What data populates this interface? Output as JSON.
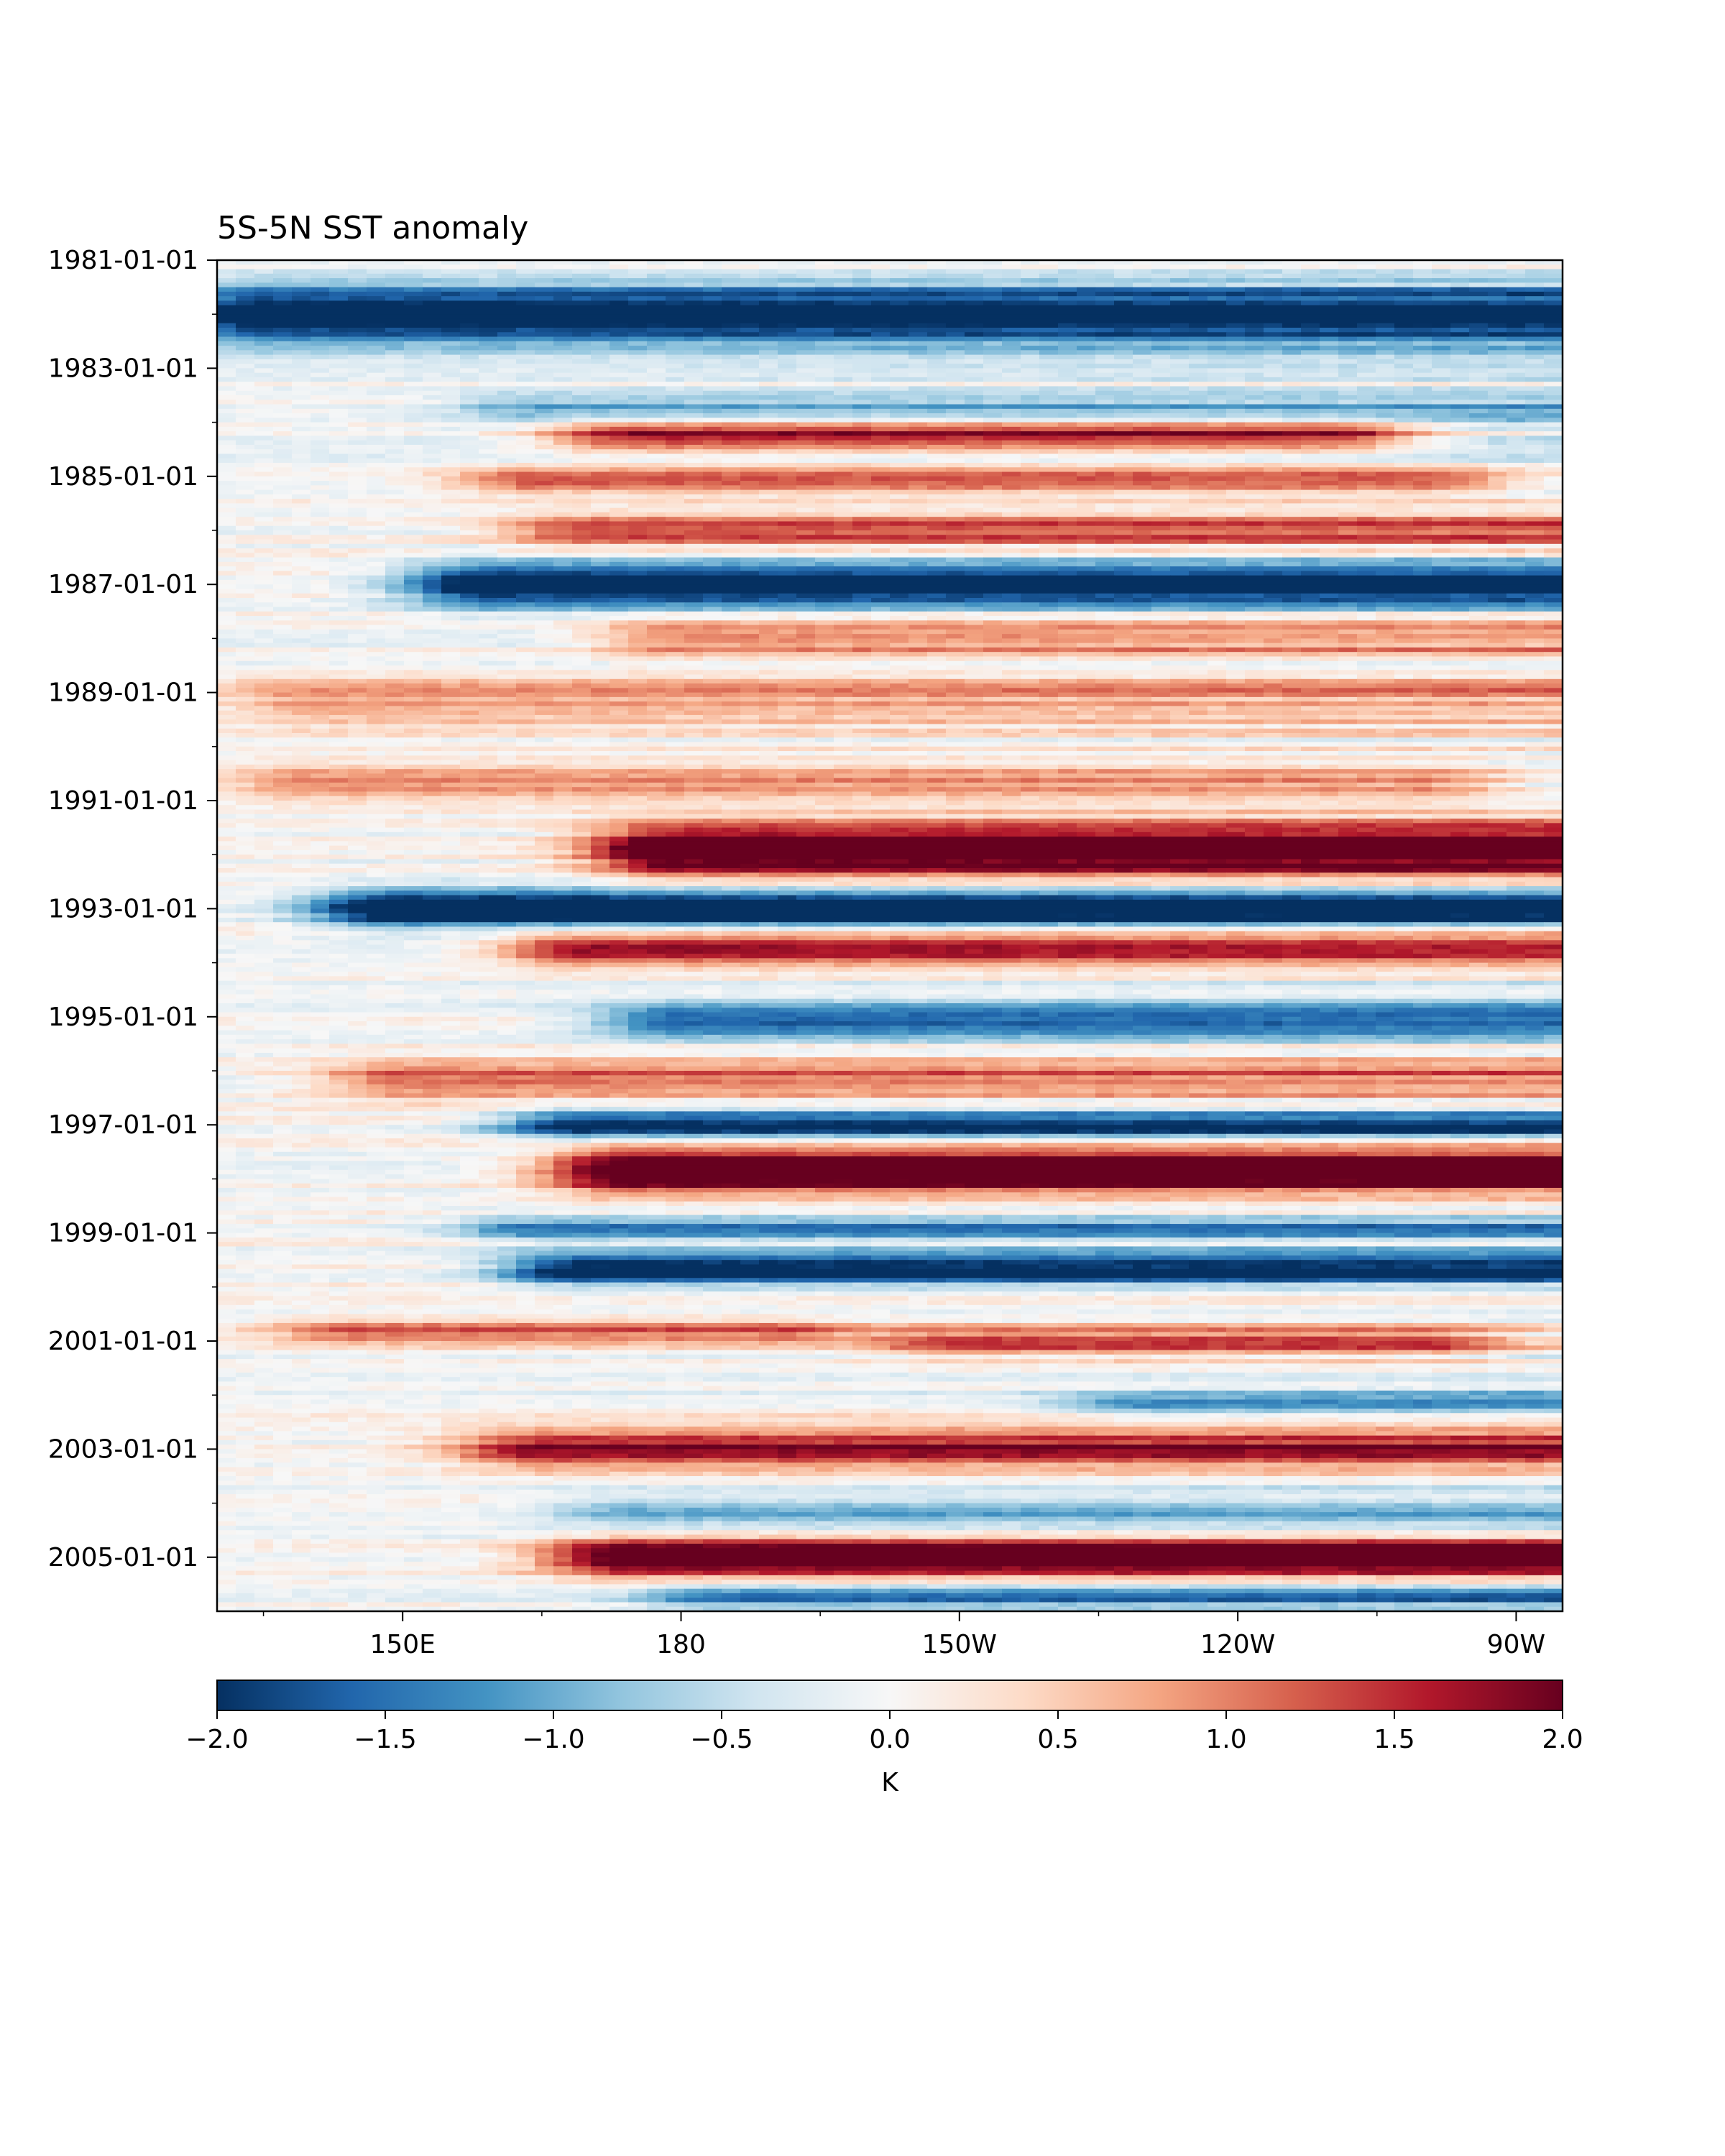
{
  "chart_data": {
    "type": "heatmap",
    "title": "5S-5N SST anomaly",
    "xlabel": "",
    "ylabel": "",
    "y_axis": {
      "kind": "date",
      "range": [
        "1981-01-01",
        "2006-01-01"
      ],
      "inverted": true,
      "ticks": [
        "1981-01-01",
        "1983-01-01",
        "1985-01-01",
        "1987-01-01",
        "1989-01-01",
        "1991-01-01",
        "1993-01-01",
        "1995-01-01",
        "1997-01-01",
        "1999-01-01",
        "2001-01-01",
        "2003-01-01",
        "2005-01-01"
      ]
    },
    "x_axis": {
      "kind": "longitude_east",
      "range": [
        130,
        275
      ],
      "ticks": [
        {
          "lon": 150,
          "label": "150E"
        },
        {
          "lon": 180,
          "label": "180"
        },
        {
          "lon": 210,
          "label": "150W"
        },
        {
          "lon": 240,
          "label": "120W"
        },
        {
          "lon": 270,
          "label": "90W"
        }
      ]
    },
    "colorbar": {
      "cmap": "RdBu_r",
      "vmin": -2.0,
      "vmax": 2.0,
      "ticks": [
        -2.0,
        -1.5,
        -1.0,
        -0.5,
        0.0,
        0.5,
        1.0,
        1.5,
        2.0
      ],
      "tick_labels": [
        "−2.0",
        "−1.5",
        "−1.0",
        "−0.5",
        "0.0",
        "0.5",
        "1.0",
        "1.5",
        "2.0"
      ],
      "label": "K",
      "colors": [
        "#053061",
        "#2166ac",
        "#4393c3",
        "#92c5de",
        "#d1e5f0",
        "#f7f7f7",
        "#fddbc7",
        "#f4a582",
        "#d6604d",
        "#b2182b",
        "#67001f"
      ]
    },
    "events": [
      {
        "date": "1982-01-01",
        "west_lon": 135,
        "east_lon": 275,
        "amp": -2.6,
        "width_months": 4.5
      },
      {
        "date": "1983-10-01",
        "west_lon": 165,
        "east_lon": 275,
        "amp": -1.0,
        "width_months": 2.5
      },
      {
        "date": "1984-04-01",
        "west_lon": 175,
        "east_lon": 250,
        "amp": 1.9,
        "width_months": 2.5
      },
      {
        "date": "1985-02-01",
        "west_lon": 165,
        "east_lon": 260,
        "amp": 1.4,
        "width_months": 2.0
      },
      {
        "date": "1986-01-01",
        "west_lon": 170,
        "east_lon": 275,
        "amp": 1.5,
        "width_months": 2.5
      },
      {
        "date": "1987-01-01",
        "west_lon": 160,
        "east_lon": 275,
        "amp": -2.6,
        "width_months": 3.5
      },
      {
        "date": "1988-01-01",
        "west_lon": 180,
        "east_lon": 275,
        "amp": 1.2,
        "width_months": 3.0
      },
      {
        "date": "1989-03-01",
        "west_lon": 140,
        "east_lon": 275,
        "amp": 0.9,
        "width_months": 4.0
      },
      {
        "date": "1990-09-01",
        "west_lon": 140,
        "east_lon": 260,
        "amp": 1.0,
        "width_months": 3.0
      },
      {
        "date": "1991-12-01",
        "west_lon": 180,
        "east_lon": 275,
        "amp": 2.8,
        "width_months": 4.0
      },
      {
        "date": "1993-01-01",
        "west_lon": 150,
        "east_lon": 275,
        "amp": -2.7,
        "width_months": 3.0
      },
      {
        "date": "1993-10-01",
        "west_lon": 170,
        "east_lon": 275,
        "amp": 2.0,
        "width_months": 2.5
      },
      {
        "date": "1995-02-01",
        "west_lon": 180,
        "east_lon": 275,
        "amp": -1.8,
        "width_months": 2.5
      },
      {
        "date": "1996-03-01",
        "west_lon": 150,
        "east_lon": 275,
        "amp": 1.3,
        "width_months": 3.0
      },
      {
        "date": "1997-01-01",
        "west_lon": 170,
        "east_lon": 275,
        "amp": -2.2,
        "width_months": 2.5
      },
      {
        "date": "1997-11-01",
        "west_lon": 175,
        "east_lon": 275,
        "amp": 2.8,
        "width_months": 3.5
      },
      {
        "date": "1998-12-01",
        "west_lon": 165,
        "east_lon": 275,
        "amp": -1.4,
        "width_months": 2.0
      },
      {
        "date": "1999-09-01",
        "west_lon": 170,
        "east_lon": 275,
        "amp": -2.4,
        "width_months": 2.5
      },
      {
        "date": "2000-11-01",
        "west_lon": 145,
        "east_lon": 190,
        "amp": 1.2,
        "width_months": 2.0
      },
      {
        "date": "2001-01-01",
        "west_lon": 210,
        "east_lon": 260,
        "amp": 1.3,
        "width_months": 2.5
      },
      {
        "date": "2002-03-01",
        "west_lon": 230,
        "east_lon": 275,
        "amp": -1.2,
        "width_months": 2.0
      },
      {
        "date": "2003-01-01",
        "west_lon": 165,
        "east_lon": 275,
        "amp": 1.8,
        "width_months": 3.0
      },
      {
        "date": "2004-03-01",
        "west_lon": 175,
        "east_lon": 275,
        "amp": -1.0,
        "width_months": 2.5
      },
      {
        "date": "2005-01-01",
        "west_lon": 175,
        "east_lon": 275,
        "amp": 2.5,
        "width_months": 3.0
      },
      {
        "date": "2005-10-01",
        "west_lon": 185,
        "east_lon": 275,
        "amp": -1.3,
        "width_months": 2.0
      }
    ]
  }
}
